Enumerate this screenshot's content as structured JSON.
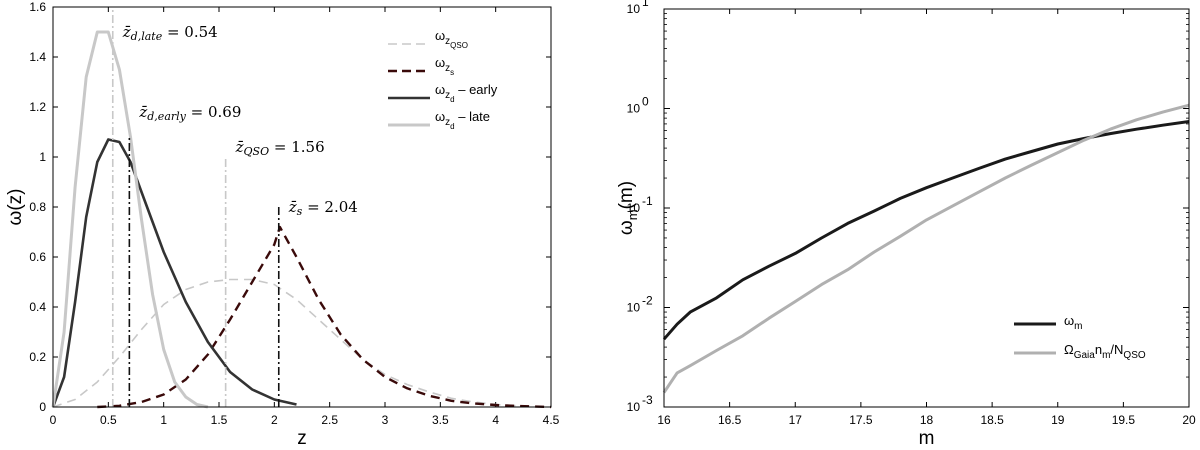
{
  "chart_data": [
    {
      "type": "line",
      "xlabel": "z",
      "ylabel": "ω(z)",
      "xlim": [
        0,
        4.5
      ],
      "ylim": [
        0,
        1.6
      ],
      "xticks": [
        "0",
        "0.5",
        "1",
        "1.5",
        "2",
        "2.5",
        "3",
        "3.5",
        "4",
        "4.5"
      ],
      "yticks": [
        "0",
        "0.2",
        "0.4",
        "0.6",
        "0.8",
        "1",
        "1.2",
        "1.4",
        "1.6"
      ],
      "legend_position": "top-right",
      "series": [
        {
          "name": "ω_zQSO",
          "legend_base": "ω",
          "legend_sub": "z",
          "legend_subsub": "QSO",
          "legend_suffix": "",
          "color": "#c8c8c8",
          "dash": "dashed",
          "x": [
            0,
            0.2,
            0.4,
            0.6,
            0.8,
            1.0,
            1.2,
            1.4,
            1.6,
            1.8,
            2.0,
            2.2,
            2.4,
            2.6,
            2.8,
            3.0,
            3.2,
            3.4,
            3.6,
            3.8,
            4.0,
            4.2
          ],
          "y": [
            0,
            0.03,
            0.1,
            0.2,
            0.31,
            0.41,
            0.47,
            0.5,
            0.51,
            0.51,
            0.49,
            0.43,
            0.35,
            0.27,
            0.19,
            0.13,
            0.09,
            0.06,
            0.035,
            0.02,
            0.01,
            0.005
          ]
        },
        {
          "name": "ω_zs",
          "legend_base": "ω",
          "legend_sub": "z",
          "legend_subsub": "s",
          "legend_suffix": "",
          "color": "#3a0a0a",
          "dash": "dashed",
          "x": [
            0.4,
            0.6,
            0.8,
            1.0,
            1.2,
            1.4,
            1.6,
            1.8,
            2.0,
            2.05,
            2.2,
            2.4,
            2.6,
            2.8,
            3.0,
            3.2,
            3.4,
            3.6,
            3.8,
            4.0,
            4.2,
            4.5
          ],
          "y": [
            0,
            0.005,
            0.02,
            0.05,
            0.11,
            0.21,
            0.35,
            0.5,
            0.65,
            0.72,
            0.6,
            0.43,
            0.29,
            0.19,
            0.12,
            0.075,
            0.045,
            0.025,
            0.014,
            0.008,
            0.004,
            0
          ]
        },
        {
          "name": "ω_zd – early",
          "legend_base": "ω",
          "legend_sub": "z",
          "legend_subsub": "d",
          "legend_suffix": " – early",
          "color": "#333333",
          "dash": "solid",
          "x": [
            0,
            0.1,
            0.2,
            0.3,
            0.4,
            0.5,
            0.6,
            0.7,
            0.8,
            0.9,
            1.0,
            1.2,
            1.4,
            1.6,
            1.8,
            2.0,
            2.2
          ],
          "y": [
            0,
            0.12,
            0.42,
            0.76,
            0.98,
            1.07,
            1.06,
            0.98,
            0.86,
            0.74,
            0.62,
            0.42,
            0.26,
            0.14,
            0.07,
            0.03,
            0.01
          ]
        },
        {
          "name": "ω_zd – late",
          "legend_base": "ω",
          "legend_sub": "z",
          "legend_subsub": "d",
          "legend_suffix": " – late",
          "color": "#c8c8c8",
          "dash": "solid",
          "x": [
            0,
            0.1,
            0.2,
            0.3,
            0.4,
            0.5,
            0.6,
            0.7,
            0.8,
            0.9,
            1.0,
            1.1,
            1.2,
            1.3,
            1.4
          ],
          "y": [
            0,
            0.3,
            0.88,
            1.32,
            1.5,
            1.5,
            1.35,
            1.08,
            0.75,
            0.45,
            0.23,
            0.1,
            0.04,
            0.01,
            0
          ]
        }
      ],
      "vlines": [
        {
          "x": 0.54,
          "y_top": 1.6,
          "color": "#c8c8c8",
          "label": "z̄d,late = 0.54",
          "label_base": "z̄",
          "label_sub": "d,late",
          "label_value": " = 0.54",
          "label_y": 1.5
        },
        {
          "x": 0.69,
          "y_top": 1.08,
          "color": "#111111",
          "label": "z̄d,early = 0.69",
          "label_base": "z̄",
          "label_sub": "d,early",
          "label_value": " = 0.69",
          "label_y": 1.18
        },
        {
          "x": 1.56,
          "y_top": 1.0,
          "color": "#c8c8c8",
          "label": "z̄QSO = 1.56",
          "label_base": "z̄",
          "label_sub": "QSO",
          "label_value": " = 1.56",
          "label_y": 1.04
        },
        {
          "x": 2.04,
          "y_top": 0.8,
          "color": "#111111",
          "label": "z̄s = 2.04",
          "label_base": "z̄",
          "label_sub": "s",
          "label_value": " = 2.04",
          "label_y": 0.8
        }
      ]
    },
    {
      "type": "line",
      "xlabel": "m",
      "ylabel_base": "ω",
      "ylabel_sub": "m",
      "ylabel_suffix": "(m)",
      "ylabel": "ωm(m)",
      "xlim": [
        16,
        20
      ],
      "ylim": [
        0.001,
        10
      ],
      "yscale": "log",
      "xticks": [
        "16",
        "16.5",
        "17",
        "17.5",
        "18",
        "18.5",
        "19",
        "19.5",
        "20"
      ],
      "yticks": [
        {
          "base": "10",
          "exp": "-3"
        },
        {
          "base": "10",
          "exp": "-2"
        },
        {
          "base": "10",
          "exp": "-1"
        },
        {
          "base": "10",
          "exp": "0"
        },
        {
          "base": "10",
          "exp": "1"
        }
      ],
      "legend_position": "bottom-right",
      "series": [
        {
          "name": "ωm",
          "legend_parts": [
            {
              "t": "ω",
              "sub": false
            },
            {
              "t": "m",
              "sub": true
            }
          ],
          "color": "#1a1a1a",
          "x": [
            16,
            16.1,
            16.2,
            16.4,
            16.6,
            16.8,
            17.0,
            17.2,
            17.4,
            17.6,
            17.8,
            18.0,
            18.2,
            18.4,
            18.6,
            18.8,
            19.0,
            19.2,
            19.4,
            19.6,
            19.8,
            20.0
          ],
          "y": [
            0.0048,
            0.0068,
            0.009,
            0.0125,
            0.019,
            0.026,
            0.035,
            0.05,
            0.07,
            0.093,
            0.125,
            0.16,
            0.2,
            0.25,
            0.31,
            0.37,
            0.44,
            0.5,
            0.56,
            0.62,
            0.68,
            0.74
          ]
        },
        {
          "name": "ΩGaianm/NQSO",
          "legend_parts": [
            {
              "t": "Ω",
              "sub": false
            },
            {
              "t": "Gaia",
              "sub": true
            },
            {
              "t": "n",
              "sub": false
            },
            {
              "t": "m",
              "sub": true
            },
            {
              "t": "/N",
              "sub": false
            },
            {
              "t": "QSO",
              "sub": true
            }
          ],
          "color": "#b0b0b0",
          "x": [
            16,
            16.1,
            16.2,
            16.4,
            16.6,
            16.8,
            17.0,
            17.2,
            17.4,
            17.6,
            17.8,
            18.0,
            18.2,
            18.4,
            18.6,
            18.8,
            19.0,
            19.2,
            19.4,
            19.6,
            19.8,
            20.0
          ],
          "y": [
            0.0014,
            0.0022,
            0.0026,
            0.0037,
            0.0052,
            0.0078,
            0.0115,
            0.017,
            0.024,
            0.036,
            0.052,
            0.076,
            0.105,
            0.145,
            0.2,
            0.27,
            0.36,
            0.48,
            0.62,
            0.77,
            0.92,
            1.08
          ]
        }
      ]
    }
  ]
}
